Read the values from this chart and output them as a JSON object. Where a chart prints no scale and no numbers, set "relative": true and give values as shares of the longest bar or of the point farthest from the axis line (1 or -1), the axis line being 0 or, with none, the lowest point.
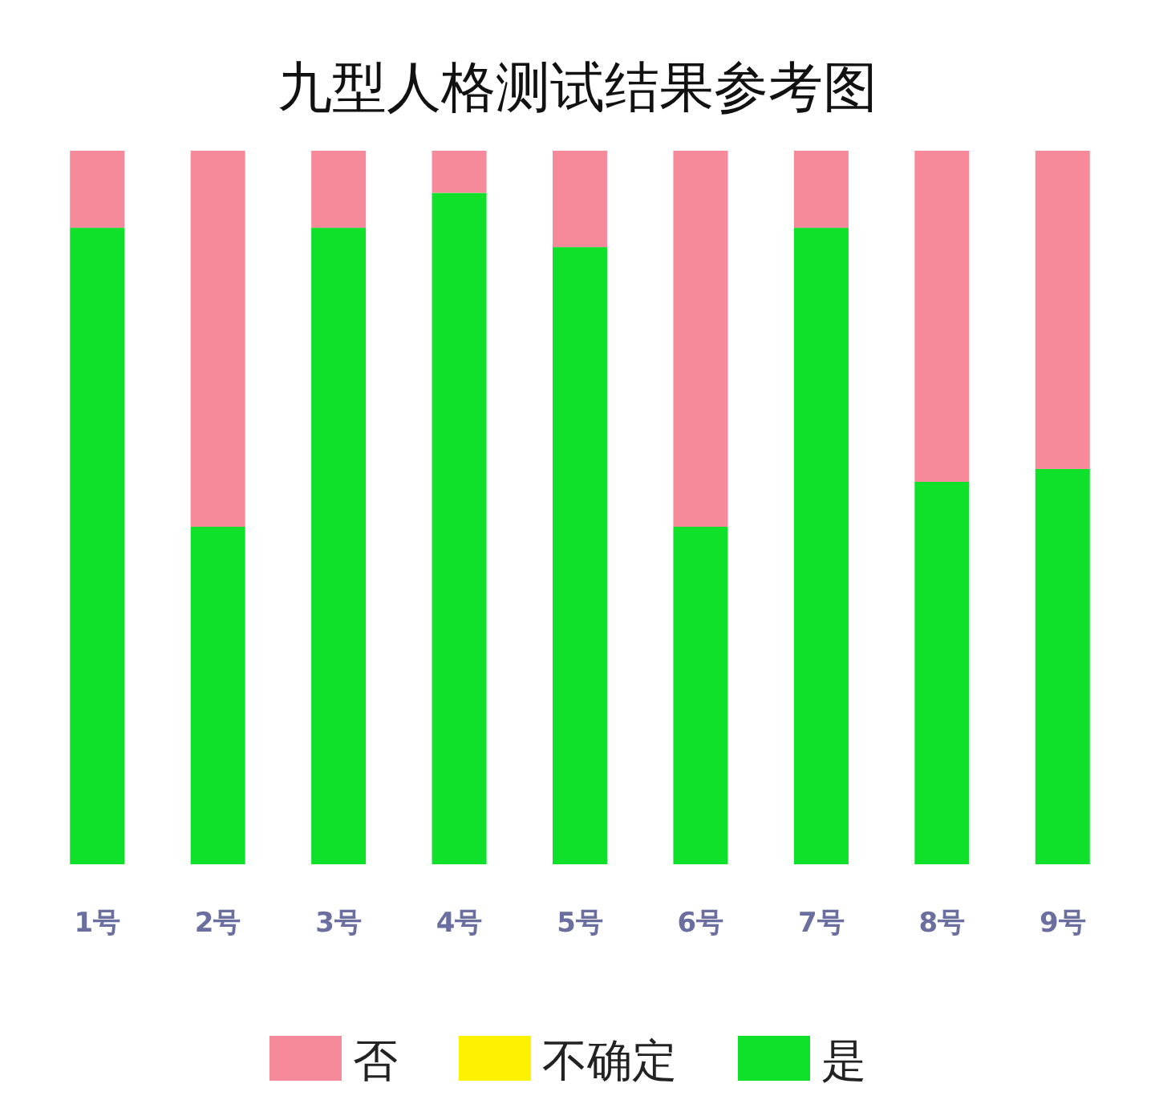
{
  "chart_data": {
    "type": "bar",
    "title": "九型人格测试结果参考图",
    "categories": [
      "1号",
      "2号",
      "3号",
      "4号",
      "5号",
      "6号",
      "7号",
      "8号",
      "9号"
    ],
    "stacked": true,
    "relative": true,
    "legend": "bottom",
    "series": [
      {
        "name": "是",
        "color": "#0fe02a",
        "values": [
          0.892,
          0.473,
          0.892,
          0.941,
          0.865,
          0.473,
          0.892,
          0.536,
          0.554
        ]
      },
      {
        "name": "不确定",
        "color": "#fff200",
        "values": [
          0,
          0,
          0,
          0,
          0,
          0,
          0,
          0,
          0
        ]
      },
      {
        "name": "否",
        "color": "#f78a9a",
        "values": [
          0.108,
          0.527,
          0.108,
          0.059,
          0.135,
          0.527,
          0.108,
          0.464,
          0.446
        ]
      }
    ]
  }
}
